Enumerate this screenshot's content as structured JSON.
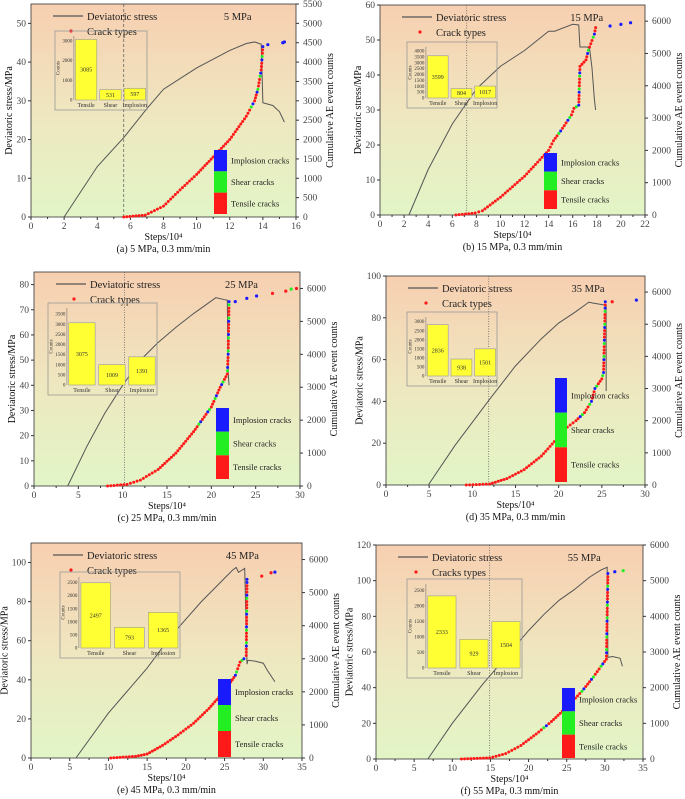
{
  "common": {
    "ylabel": "Deviatoric stress/MPa",
    "y2label": "Cumulative AE event counts",
    "xlabel": "Steps/10⁴",
    "legend_stress": "Deviatoric stress",
    "legend_cracks": "Crack types",
    "inset_ylabel": "Counts",
    "categories": [
      "Tensile",
      "Shear",
      "Implosion"
    ],
    "crack_legend": [
      "Implosion cracks",
      "Shear cracks",
      "Tensile cracks"
    ],
    "colors": {
      "T": "#ff1a1a",
      "S": "#22ee22",
      "I": "#1a1aff",
      "bar": "#ffff33",
      "stress": "#555555"
    }
  },
  "chart_data": [
    {
      "type": "line",
      "title": "5 MPa",
      "caption": "(a) 5 MPa, 0.3 mm/min",
      "legend_cracks": "Crack types",
      "xlim": [
        0,
        16
      ],
      "xstep": 2,
      "ylim": [
        0,
        55
      ],
      "ystep": 10,
      "y2lim": [
        0,
        5500
      ],
      "y2step": 500,
      "vline": 5.6,
      "vstyle": "dash",
      "stress": [
        [
          2,
          0
        ],
        [
          4,
          13
        ],
        [
          5.6,
          20.5
        ],
        [
          7,
          28
        ],
        [
          8,
          33
        ],
        [
          10,
          38.5
        ],
        [
          12,
          43
        ],
        [
          13,
          44.8
        ],
        [
          13.5,
          45.2
        ],
        [
          13.9,
          44.6
        ],
        [
          14,
          29.5
        ],
        [
          14.6,
          28.8
        ],
        [
          15,
          27.2
        ],
        [
          15.3,
          24.5
        ]
      ],
      "ae": [
        [
          5.6,
          0,
          "T"
        ],
        [
          6.9,
          50,
          "T"
        ],
        [
          8,
          280,
          "T"
        ],
        [
          9,
          700,
          "T"
        ],
        [
          10,
          1100,
          "T"
        ],
        [
          11,
          1550,
          "T"
        ],
        [
          12,
          2000,
          "T"
        ],
        [
          13,
          2600,
          "M"
        ],
        [
          13.5,
          3000,
          "M"
        ],
        [
          13.7,
          3300,
          "M"
        ],
        [
          13.9,
          3800,
          "M"
        ],
        [
          14,
          4400,
          "M"
        ]
      ],
      "ae_extra": [
        [
          14.3,
          4450,
          "I"
        ],
        [
          15.2,
          4500,
          "I"
        ],
        [
          15.3,
          4520,
          "I"
        ]
      ],
      "inset": {
        "values": [
          3085,
          531,
          597
        ],
        "ymax": 3000,
        "ystep": 1000
      }
    },
    {
      "type": "line",
      "title": "15 MPa",
      "caption": "(b) 15 MPa, 0.3 mm/min",
      "legend_cracks": "Crack types",
      "xlim": [
        0,
        22
      ],
      "xstep": 2,
      "ylim": [
        0,
        60
      ],
      "ystep": 10,
      "y2lim": [
        0,
        6500
      ],
      "y2step": 1000,
      "vline": 7.2,
      "vstyle": "dot",
      "stress": [
        [
          2.4,
          0
        ],
        [
          4,
          13
        ],
        [
          6,
          26
        ],
        [
          8,
          36
        ],
        [
          10,
          42.5
        ],
        [
          12,
          47
        ],
        [
          14,
          52.5
        ],
        [
          14.5,
          52.5
        ],
        [
          16,
          54.5
        ],
        [
          16.5,
          54.3
        ],
        [
          16.6,
          48
        ],
        [
          17.2,
          48
        ],
        [
          17.4,
          47.5
        ],
        [
          17.6,
          42
        ],
        [
          17.8,
          33
        ],
        [
          17.9,
          30
        ]
      ],
      "ae": [
        [
          6.3,
          0,
          "T"
        ],
        [
          7.9,
          60,
          "T"
        ],
        [
          8.5,
          130,
          "T"
        ],
        [
          10,
          550,
          "T"
        ],
        [
          12,
          1200,
          "T"
        ],
        [
          14,
          2000,
          "T"
        ],
        [
          14.4,
          2300,
          "M"
        ],
        [
          15,
          2600,
          "M"
        ],
        [
          15.9,
          3100,
          "M"
        ],
        [
          16.1,
          3300,
          "M"
        ],
        [
          16.5,
          3400,
          "M"
        ],
        [
          16.6,
          4600,
          "T"
        ],
        [
          17.1,
          4800,
          "M"
        ],
        [
          17.3,
          5100,
          "M"
        ],
        [
          17.8,
          5600,
          "M"
        ],
        [
          17.9,
          5800,
          "T"
        ]
      ],
      "ae_extra": [
        [
          19.1,
          5850,
          "I"
        ],
        [
          20,
          5900,
          "I"
        ],
        [
          20.8,
          5950,
          "I"
        ]
      ],
      "inset": {
        "values": [
          3599,
          804,
          1017
        ],
        "ymax": 4000,
        "ystep": 500
      }
    },
    {
      "type": "line",
      "title": "25 MPa",
      "caption": "(c) 25 MPa, 0.3 mm/min",
      "legend_cracks": "Crack types",
      "xlim": [
        0,
        30
      ],
      "xstep": 5,
      "ylim": [
        0,
        85
      ],
      "ystep": 10,
      "y2lim": [
        0,
        6500
      ],
      "y2step": 1000,
      "vline": 10.2,
      "vstyle": "dot",
      "stress": [
        [
          3.8,
          0
        ],
        [
          6,
          16
        ],
        [
          8,
          29
        ],
        [
          10,
          40
        ],
        [
          12,
          50
        ],
        [
          14,
          57
        ],
        [
          16,
          63
        ],
        [
          18,
          68.5
        ],
        [
          20,
          73.5
        ],
        [
          20.5,
          74.8
        ],
        [
          21.5,
          74
        ],
        [
          21.8,
          73.8
        ],
        [
          21.9,
          45
        ],
        [
          22,
          40
        ]
      ],
      "ae": [
        [
          8.3,
          0,
          "T"
        ],
        [
          10.5,
          50,
          "T"
        ],
        [
          12,
          180,
          "T"
        ],
        [
          14,
          500,
          "T"
        ],
        [
          16,
          1000,
          "T"
        ],
        [
          18,
          1650,
          "M"
        ],
        [
          20,
          2400,
          "M"
        ],
        [
          21,
          3000,
          "M"
        ],
        [
          21.8,
          3400,
          "M"
        ],
        [
          21.9,
          4000,
          "M"
        ],
        [
          22,
          5600,
          "M"
        ]
      ],
      "ae_extra": [
        [
          22.7,
          5600,
          "I"
        ],
        [
          24,
          5700,
          "I"
        ],
        [
          25.1,
          5770,
          "I"
        ],
        [
          26.9,
          5850,
          "T"
        ],
        [
          28.4,
          5920,
          "T"
        ],
        [
          29,
          5980,
          "S"
        ],
        [
          29.6,
          6000,
          "T"
        ]
      ],
      "inset": {
        "values": [
          3075,
          1009,
          1391
        ],
        "ymax": 3500,
        "ystep": 500
      }
    },
    {
      "type": "line",
      "title": "35 MPa",
      "caption": "(d) 35 MPa, 0.3 mm/min",
      "legend_cracks": "Crack types",
      "xlim": [
        0,
        30
      ],
      "xstep": 5,
      "ylim": [
        0,
        100
      ],
      "ystep": 20,
      "y2lim": [
        0,
        6500
      ],
      "y2step": 1000,
      "vline": 11.9,
      "vstyle": "dot",
      "stress": [
        [
          4.9,
          0
        ],
        [
          8,
          19
        ],
        [
          10,
          30
        ],
        [
          12,
          41
        ],
        [
          15,
          57
        ],
        [
          18,
          70
        ],
        [
          20,
          77.5
        ],
        [
          22,
          83
        ],
        [
          23.5,
          87.5
        ],
        [
          24,
          87
        ],
        [
          25.5,
          86
        ],
        [
          25.5,
          45
        ]
      ],
      "ae": [
        [
          9.3,
          0,
          "T"
        ],
        [
          12,
          30,
          "T"
        ],
        [
          14,
          200,
          "T"
        ],
        [
          16,
          480,
          "T"
        ],
        [
          18,
          900,
          "T"
        ],
        [
          19.5,
          1350,
          "M"
        ],
        [
          21,
          1800,
          "T"
        ],
        [
          22,
          2000,
          "M"
        ],
        [
          23,
          2250,
          "M"
        ],
        [
          23.8,
          2600,
          "M"
        ],
        [
          24.2,
          3000,
          "M"
        ],
        [
          25,
          3300,
          "M"
        ],
        [
          25.2,
          3500,
          "M"
        ],
        [
          25.4,
          5700,
          "M"
        ]
      ],
      "ae_extra": [
        [
          26.2,
          5700,
          "T"
        ],
        [
          29,
          5750,
          "I"
        ]
      ],
      "inset": {
        "values": [
          2836,
          938,
          1501
        ],
        "ymax": 3000,
        "ystep": 500
      }
    },
    {
      "type": "line",
      "title": "45 MPa",
      "caption": "(e) 45 MPa, 0.3 mm/min",
      "legend_cracks": "Crack types",
      "xlim": [
        0,
        35
      ],
      "xstep": 5,
      "ylim": [
        0,
        110
      ],
      "ystep": 20,
      "y2lim": [
        0,
        6500
      ],
      "y2step": 1000,
      "vline": null,
      "vstyle": "dot",
      "stress": [
        [
          5.8,
          0
        ],
        [
          10,
          23
        ],
        [
          15,
          46
        ],
        [
          18,
          62
        ],
        [
          20,
          71
        ],
        [
          22,
          80
        ],
        [
          24,
          88
        ],
        [
          26,
          96
        ],
        [
          26.5,
          97.5
        ],
        [
          26.8,
          95
        ],
        [
          27.2,
          96
        ],
        [
          27.6,
          97
        ],
        [
          27.9,
          48
        ],
        [
          28,
          50
        ],
        [
          29,
          49.5
        ],
        [
          30,
          48.5
        ],
        [
          30.5,
          45
        ],
        [
          31.5,
          39
        ]
      ],
      "ae": [
        [
          10.3,
          0,
          "T"
        ],
        [
          13.5,
          50,
          "T"
        ],
        [
          15,
          120,
          "T"
        ],
        [
          17,
          380,
          "T"
        ],
        [
          19,
          700,
          "T"
        ],
        [
          21,
          1050,
          "T"
        ],
        [
          23,
          1500,
          "T"
        ],
        [
          24.5,
          1900,
          "M"
        ],
        [
          25.8,
          2300,
          "M"
        ],
        [
          26.4,
          2500,
          "M"
        ],
        [
          27,
          2900,
          "M"
        ],
        [
          27.5,
          3000,
          "M"
        ],
        [
          27.8,
          3100,
          "M"
        ],
        [
          27.9,
          5400,
          "M"
        ]
      ],
      "ae_extra": [
        [
          29.8,
          5500,
          "T"
        ],
        [
          31,
          5600,
          "T"
        ],
        [
          31.5,
          5620,
          "I"
        ]
      ],
      "inset": {
        "values": [
          2497,
          793,
          1365
        ],
        "ymax": 2500,
        "ystep": 500
      }
    },
    {
      "type": "line",
      "title": "55 MPa",
      "caption": "(f) 55 MPa, 0.3 mm/min",
      "legend_cracks": "Cracks types",
      "xlim": [
        0,
        35
      ],
      "xstep": 5,
      "ylim": [
        0,
        120
      ],
      "ystep": 20,
      "y2lim": [
        0,
        6000
      ],
      "y2step": 1000,
      "vline": 14.9,
      "vstyle": "dot",
      "stress": [
        [
          6.8,
          0
        ],
        [
          10,
          20
        ],
        [
          14,
          42
        ],
        [
          16,
          52
        ],
        [
          18,
          62
        ],
        [
          20,
          72
        ],
        [
          22,
          81
        ],
        [
          24,
          89
        ],
        [
          26,
          95
        ],
        [
          28,
          102
        ],
        [
          29.5,
          106
        ],
        [
          30.3,
          107.5
        ],
        [
          30.4,
          57
        ],
        [
          31,
          57.5
        ],
        [
          32,
          56.5
        ],
        [
          32.3,
          52
        ]
      ],
      "ae": [
        [
          11.2,
          0,
          "T"
        ],
        [
          14.9,
          30,
          "T"
        ],
        [
          17,
          150,
          "T"
        ],
        [
          19,
          380,
          "T"
        ],
        [
          21,
          700,
          "M"
        ],
        [
          23,
          1050,
          "T"
        ],
        [
          25,
          1450,
          "M"
        ],
        [
          27,
          1900,
          "M"
        ],
        [
          28.5,
          2300,
          "M"
        ],
        [
          29.5,
          2600,
          "M"
        ],
        [
          30.2,
          2800,
          "M"
        ],
        [
          30.4,
          5200,
          "M"
        ]
      ],
      "ae_extra": [
        [
          31.3,
          5250,
          "I"
        ],
        [
          32.4,
          5280,
          "S"
        ]
      ],
      "inset": {
        "values": [
          2333,
          929,
          1504
        ],
        "ymax": 2500,
        "ystep": 500
      }
    }
  ]
}
